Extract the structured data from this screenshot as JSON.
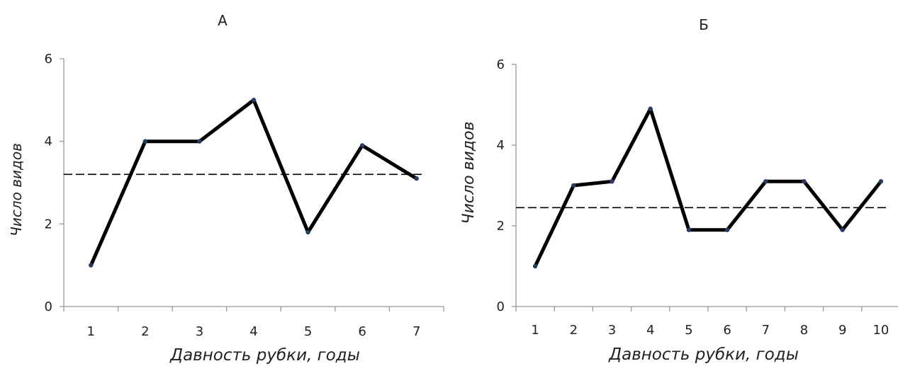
{
  "chart_data": [
    {
      "type": "line",
      "title": "А",
      "xlabel": "Давность рубки, годы",
      "ylabel": "Число видов",
      "categories": [
        "1",
        "2",
        "3",
        "4",
        "5",
        "6",
        "7"
      ],
      "series": [
        {
          "values": [
            1,
            4,
            4,
            5,
            1.8,
            3.9,
            3.1
          ]
        }
      ],
      "reference_line": {
        "value": 3.2,
        "style": "dashed"
      },
      "yticks": [
        "0",
        "2",
        "4",
        "6"
      ],
      "ylim": [
        0,
        6
      ],
      "grid": false,
      "legend": "none"
    },
    {
      "type": "line",
      "title": "Б",
      "xlabel": "Давность рубки, годы",
      "ylabel": "Число видов",
      "categories": [
        "1",
        "2",
        "3",
        "4",
        "5",
        "6",
        "7",
        "8",
        "9",
        "10"
      ],
      "series": [
        {
          "values": [
            1,
            3,
            3.1,
            4.9,
            1.9,
            1.9,
            3.1,
            3.1,
            1.9,
            3.1
          ]
        }
      ],
      "reference_line": {
        "value": 2.45,
        "style": "dashed"
      },
      "yticks": [
        "0",
        "2",
        "4",
        "6"
      ],
      "ylim": [
        0,
        6
      ],
      "grid": false,
      "legend": "none"
    }
  ]
}
